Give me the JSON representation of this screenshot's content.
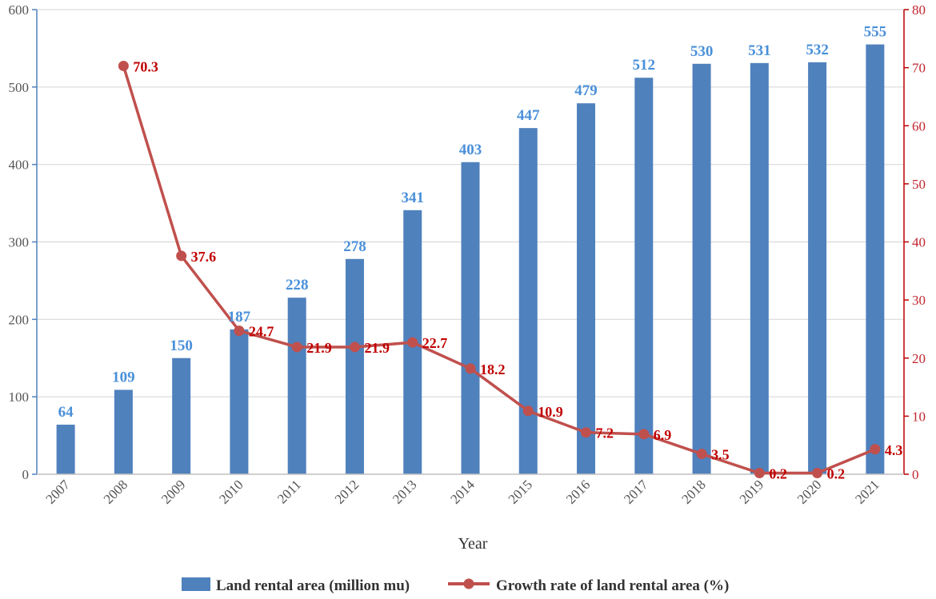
{
  "chart_data": {
    "type": "bar+line",
    "categories": [
      "2007",
      "2008",
      "2009",
      "2010",
      "2011",
      "2012",
      "2013",
      "2014",
      "2015",
      "2016",
      "2017",
      "2018",
      "2019",
      "2020",
      "2021"
    ],
    "series": [
      {
        "name": "Land rental area (million mu)",
        "type": "bar",
        "axis": "left",
        "color": "#4f81bd",
        "values": [
          64,
          109,
          150,
          187,
          228,
          278,
          341,
          403,
          447,
          479,
          512,
          530,
          531,
          532,
          555
        ],
        "labels": [
          "64",
          "109",
          "150",
          "187",
          "228",
          "278",
          "341",
          "403",
          "447",
          "479",
          "512",
          "530",
          "531",
          "532",
          "555"
        ]
      },
      {
        "name": "Growth rate of land rental area (%)",
        "type": "line",
        "axis": "right",
        "color": "#c0504d",
        "values": [
          null,
          70.3,
          37.6,
          24.7,
          21.9,
          21.9,
          22.7,
          18.2,
          10.9,
          7.2,
          6.9,
          3.5,
          0.2,
          0.2,
          4.3
        ],
        "labels": [
          "",
          "70.3",
          "37.6",
          "24.7",
          "21.9",
          "21.9",
          "22.7",
          "18.2",
          "10.9",
          "7.2",
          "6.9",
          "3.5",
          "0.2",
          "0.2",
          "4.3"
        ]
      }
    ],
    "xlabel": "Year",
    "ylabel_left": "",
    "ylabel_right": "",
    "ylim_left": [
      0,
      600
    ],
    "yticks_left": [
      "0",
      "100",
      "200",
      "300",
      "400",
      "500",
      "600"
    ],
    "ylim_right": [
      0,
      80
    ],
    "yticks_right": [
      "0",
      "10",
      "20",
      "30",
      "40",
      "50",
      "60",
      "70",
      "80"
    ],
    "grid": true,
    "legend_position": "bottom"
  }
}
